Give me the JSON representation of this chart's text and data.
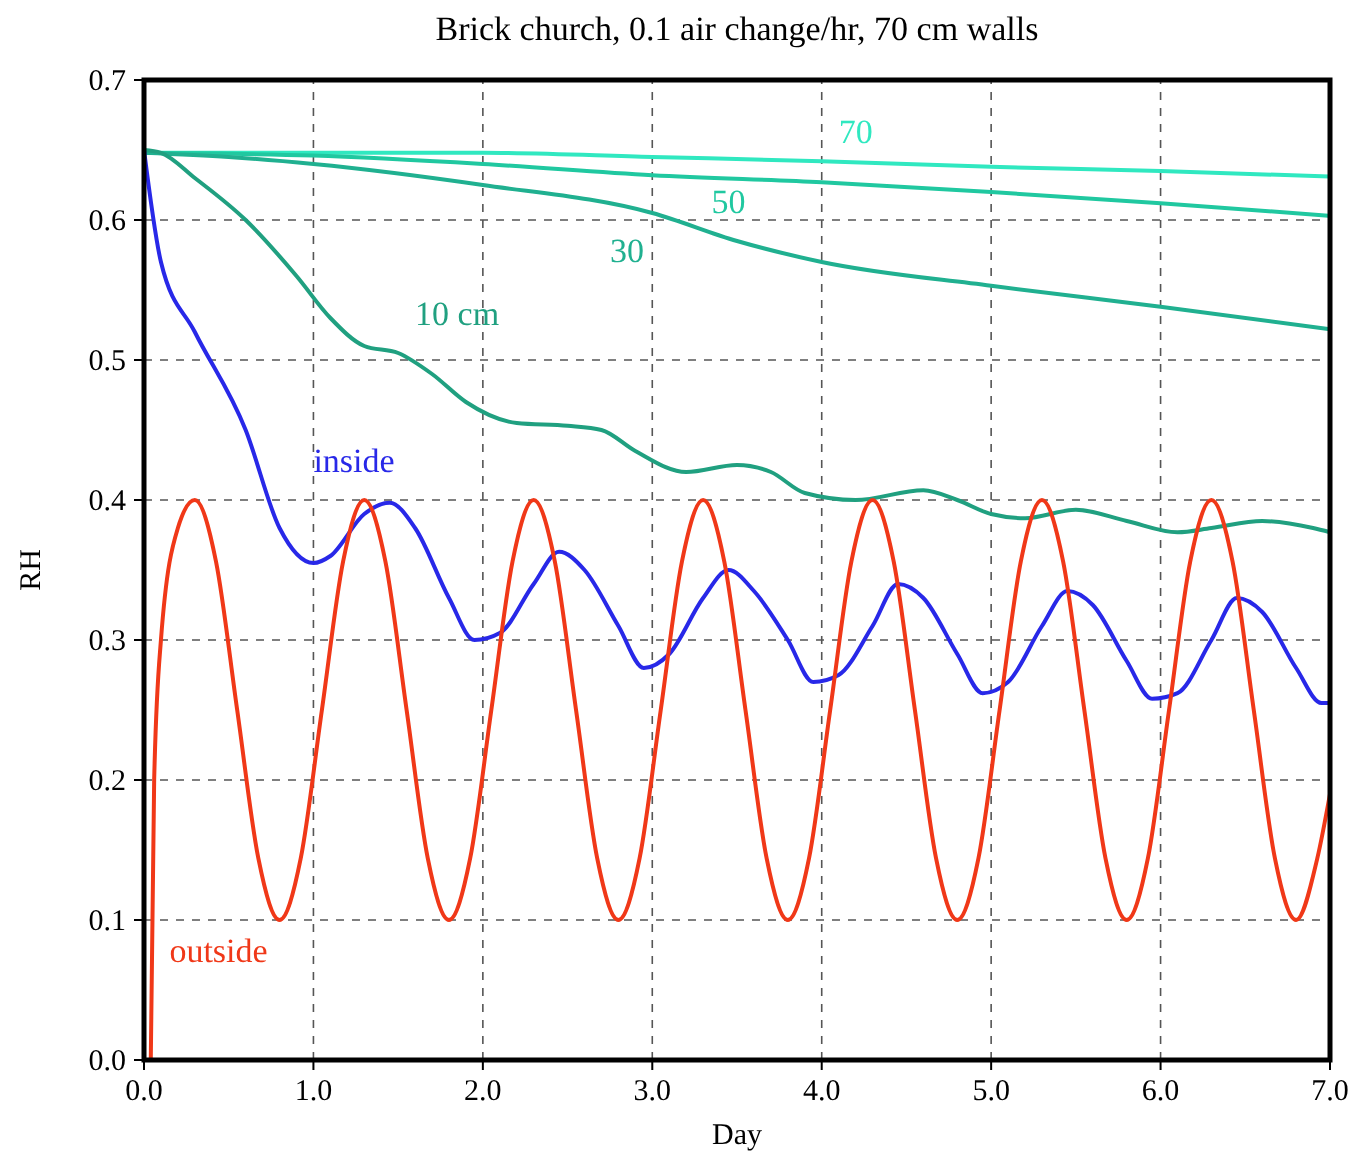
{
  "chart_data": {
    "type": "line",
    "title": "Brick church, 0.1 air change/hr, 70 cm walls",
    "xlabel": "Day",
    "ylabel": "RH",
    "xlim": [
      0,
      7
    ],
    "ylim": [
      0,
      0.7
    ],
    "xticks": [
      {
        "value": 0,
        "label": "0.0"
      },
      {
        "value": 1,
        "label": "1.0"
      },
      {
        "value": 2,
        "label": "2.0"
      },
      {
        "value": 3,
        "label": "3.0"
      },
      {
        "value": 4,
        "label": "4.0"
      },
      {
        "value": 5,
        "label": "5.0"
      },
      {
        "value": 6,
        "label": "6.0"
      },
      {
        "value": 7,
        "label": "7.0"
      }
    ],
    "yticks": [
      {
        "value": 0,
        "label": "0.0"
      },
      0.1,
      0.2,
      0.3,
      0.4,
      0.5,
      0.6,
      0.7
    ],
    "grid": true,
    "marker": "none",
    "line_style": "solid",
    "series": [
      {
        "name": "70",
        "color": "#30e8c0",
        "x": [
          0,
          1,
          2,
          3,
          4,
          5,
          6,
          7
        ],
        "values": [
          0.648,
          0.648,
          0.648,
          0.645,
          0.642,
          0.638,
          0.635,
          0.631
        ]
      },
      {
        "name": "50",
        "color": "#20c8a0",
        "x": [
          0,
          1,
          2,
          3,
          4,
          5,
          6,
          7
        ],
        "values": [
          0.648,
          0.646,
          0.64,
          0.632,
          0.627,
          0.62,
          0.612,
          0.603
        ]
      },
      {
        "name": "30",
        "color": "#20b090",
        "x": [
          0,
          0.5,
          1,
          2,
          3,
          3.5,
          4,
          5,
          6,
          7
        ],
        "values": [
          0.648,
          0.645,
          0.64,
          0.625,
          0.605,
          0.585,
          0.57,
          0.553,
          0.538,
          0.522
        ]
      },
      {
        "name": "10 cm",
        "color": "#20a080",
        "x": [
          0,
          0.1,
          0.3,
          0.6,
          0.9,
          1.1,
          1.3,
          1.5,
          1.7,
          1.9,
          2.2,
          2.5,
          2.7,
          2.9,
          3.2,
          3.5,
          3.7,
          3.9,
          4.2,
          4.6,
          4.8,
          5.0,
          5.2,
          5.5,
          5.8,
          6.1,
          6.3,
          6.6,
          6.9,
          7.0
        ],
        "values": [
          0.65,
          0.648,
          0.63,
          0.6,
          0.56,
          0.53,
          0.51,
          0.505,
          0.49,
          0.47,
          0.455,
          0.453,
          0.45,
          0.435,
          0.42,
          0.425,
          0.42,
          0.405,
          0.4,
          0.407,
          0.4,
          0.39,
          0.387,
          0.393,
          0.385,
          0.377,
          0.38,
          0.385,
          0.38,
          0.377
        ]
      },
      {
        "name": "inside",
        "color": "#2828e8",
        "x": [
          0,
          0.1,
          0.3,
          0.6,
          0.8,
          1.0,
          1.1,
          1.3,
          1.45,
          1.6,
          1.8,
          1.95,
          2.1,
          2.3,
          2.45,
          2.6,
          2.8,
          2.95,
          3.1,
          3.3,
          3.45,
          3.6,
          3.8,
          3.95,
          4.1,
          4.3,
          4.45,
          4.6,
          4.8,
          4.95,
          5.1,
          5.3,
          5.45,
          5.6,
          5.8,
          5.95,
          6.1,
          6.3,
          6.45,
          6.6,
          6.8,
          6.95,
          7.0
        ],
        "values": [
          0.65,
          0.57,
          0.52,
          0.45,
          0.38,
          0.355,
          0.36,
          0.39,
          0.398,
          0.38,
          0.33,
          0.3,
          0.305,
          0.34,
          0.363,
          0.35,
          0.31,
          0.28,
          0.29,
          0.33,
          0.35,
          0.335,
          0.3,
          0.27,
          0.275,
          0.31,
          0.34,
          0.33,
          0.29,
          0.262,
          0.27,
          0.31,
          0.335,
          0.325,
          0.285,
          0.258,
          0.262,
          0.3,
          0.33,
          0.32,
          0.28,
          0.255,
          0.255
        ]
      },
      {
        "name": "outside",
        "color": "#f03818",
        "x": [
          0.04,
          0.06,
          0.1,
          0.2,
          0.3,
          0.425,
          0.55,
          0.675,
          0.8,
          0.925,
          1.05,
          1.175,
          1.3,
          1.425,
          1.55,
          1.675,
          1.8,
          1.925,
          2.05,
          2.175,
          2.3,
          2.425,
          2.55,
          2.675,
          2.8,
          2.925,
          3.05,
          3.175,
          3.3,
          3.425,
          3.55,
          3.675,
          3.8,
          3.925,
          4.05,
          4.175,
          4.3,
          4.425,
          4.55,
          4.675,
          4.8,
          4.925,
          5.05,
          5.175,
          5.3,
          5.425,
          5.55,
          5.675,
          5.8,
          5.925,
          6.05,
          6.175,
          6.3,
          6.425,
          6.55,
          6.675,
          6.8,
          6.925,
          7.0
        ],
        "values": [
          0,
          0.2,
          0.3,
          0.38,
          0.4,
          0.356,
          0.25,
          0.144,
          0.1,
          0.144,
          0.25,
          0.356,
          0.4,
          0.356,
          0.25,
          0.144,
          0.1,
          0.144,
          0.25,
          0.356,
          0.4,
          0.356,
          0.25,
          0.144,
          0.1,
          0.144,
          0.25,
          0.356,
          0.4,
          0.356,
          0.25,
          0.144,
          0.1,
          0.144,
          0.25,
          0.356,
          0.4,
          0.356,
          0.25,
          0.144,
          0.1,
          0.144,
          0.25,
          0.356,
          0.4,
          0.356,
          0.25,
          0.144,
          0.1,
          0.144,
          0.25,
          0.356,
          0.4,
          0.356,
          0.25,
          0.144,
          0.1,
          0.144,
          0.19
        ]
      }
    ]
  }
}
